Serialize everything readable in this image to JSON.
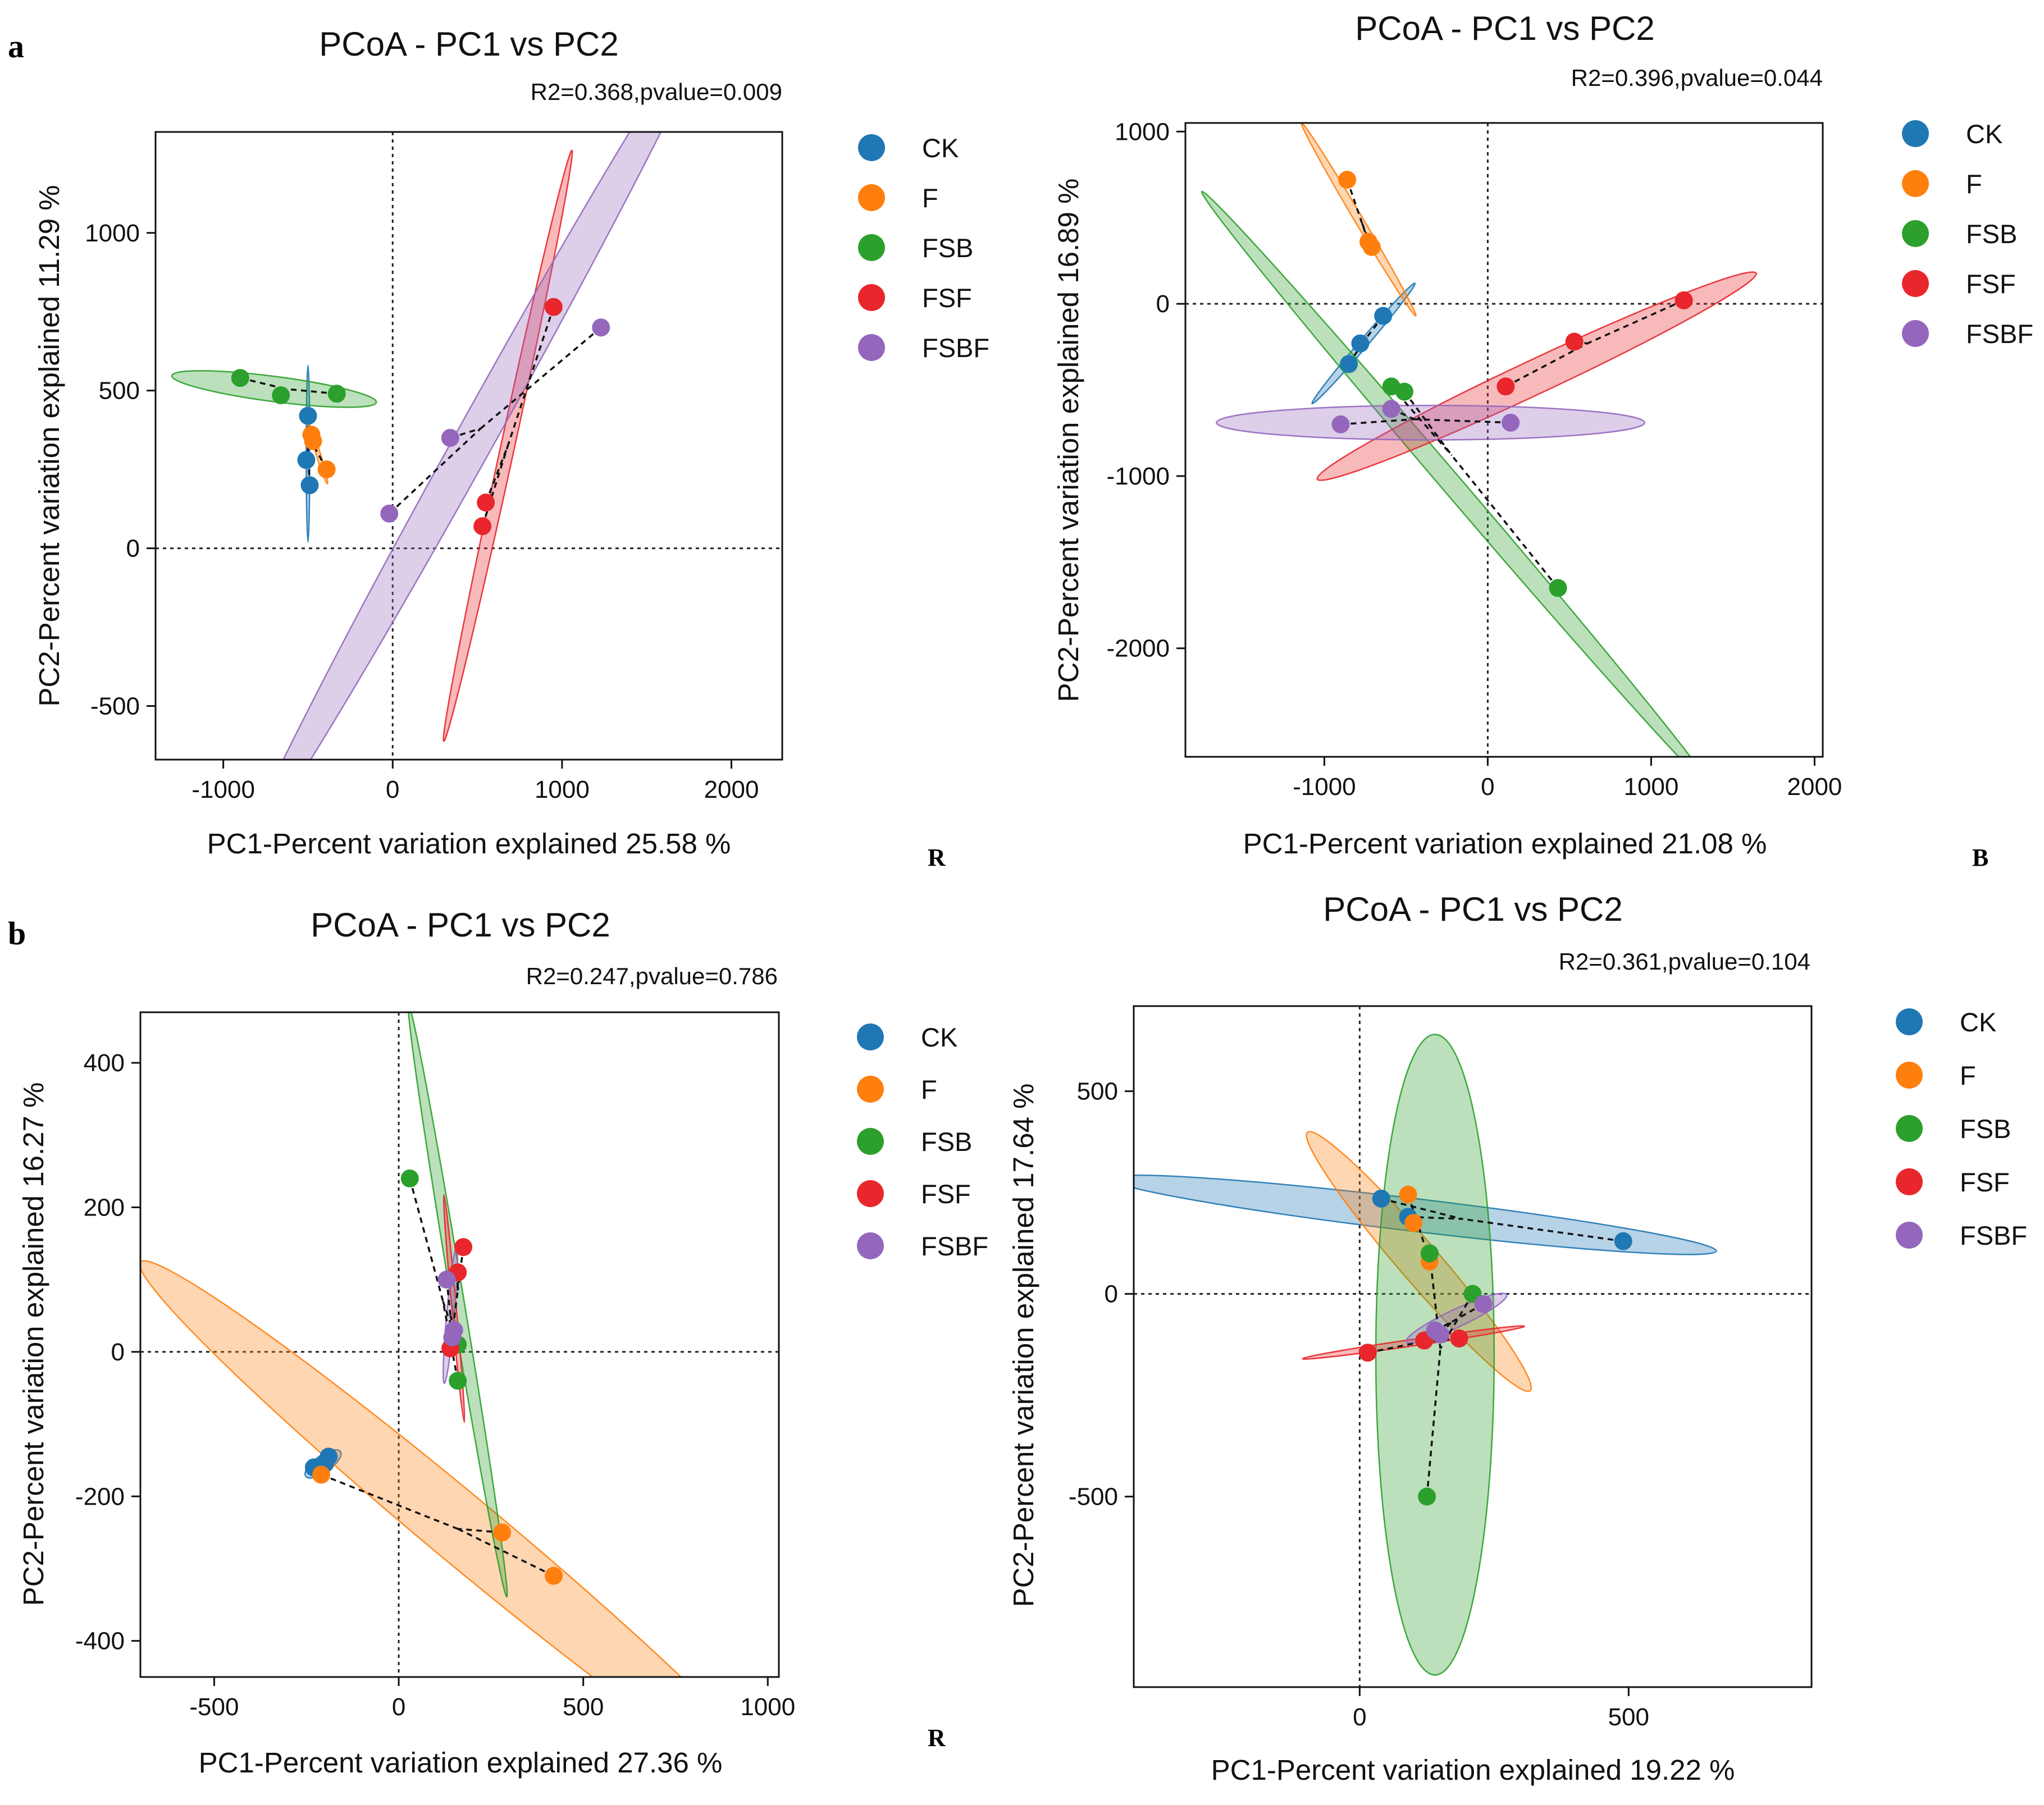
{
  "figure": {
    "panel_label_a": "a",
    "panel_label_b": "b",
    "corner_labels": [
      "R",
      "B",
      "R"
    ]
  },
  "legend_items": [
    {
      "key": "CK",
      "label": "CK",
      "color": "#1f77b4"
    },
    {
      "key": "F",
      "label": "F",
      "color": "#ff7f0e"
    },
    {
      "key": "FSB",
      "label": "FSB",
      "color": "#2ca02c"
    },
    {
      "key": "FSF",
      "label": "FSF",
      "color": "#e8262b"
    },
    {
      "key": "FSBF",
      "label": "FSBF",
      "color": "#9467bd"
    }
  ],
  "chart_data": [
    {
      "type": "scatter",
      "title": "PCoA - PC1 vs PC2",
      "stat": "R2=0.368,pvalue=0.009",
      "xlabel": "PC1-Percent variation explained 25.58 %",
      "ylabel": "PC2-Percent variation explained 11.29 %",
      "xlim": [
        -1400,
        2300
      ],
      "ylim": [
        -670,
        1320
      ],
      "xticks": [
        -1000,
        0,
        1000,
        2000
      ],
      "xtick_labels": [
        "-1000",
        "0",
        "1000",
        "2000"
      ],
      "yticks": [
        -500,
        0,
        500,
        1000
      ],
      "ytick_labels": [
        "-500",
        "0",
        "500",
        "1000"
      ],
      "series": [
        {
          "name": "CK",
          "points": [
            [
              -500,
              420
            ],
            [
              -510,
              280
            ],
            [
              -490,
              200
            ]
          ],
          "centroid": [
            -500,
            300
          ],
          "ellipse": {
            "cx": -500,
            "cy": 300,
            "a": 280,
            "b": 10,
            "angle": 90
          }
        },
        {
          "name": "F",
          "points": [
            [
              -480,
              360
            ],
            [
              -470,
              340
            ],
            [
              -390,
              250
            ]
          ],
          "centroid": [
            -460,
            320
          ],
          "ellipse": {
            "cx": -440,
            "cy": 300,
            "a": 110,
            "b": 10,
            "angle": 120
          }
        },
        {
          "name": "FSB",
          "points": [
            [
              -900,
              540
            ],
            [
              -660,
              485
            ],
            [
              -330,
              490
            ]
          ],
          "centroid": [
            -630,
            505
          ],
          "ellipse": {
            "cx": -700,
            "cy": 505,
            "a": 605,
            "b": 40,
            "angle": -4
          }
        },
        {
          "name": "FSF",
          "points": [
            [
              950,
              765
            ],
            [
              550,
              145
            ],
            [
              530,
              70
            ]
          ],
          "centroid": [
            680,
            325
          ],
          "ellipse": {
            "cx": 680,
            "cy": 325,
            "a": 1010,
            "b": 35,
            "angle": 68
          }
        },
        {
          "name": "FSBF",
          "points": [
            [
              1230,
              700
            ],
            [
              340,
              350
            ],
            [
              -20,
              110
            ]
          ],
          "centroid": [
            520,
            380
          ],
          "ellipse": {
            "cx": 520,
            "cy": 380,
            "a": 1930,
            "b": 75,
            "angle": 44
          }
        }
      ]
    },
    {
      "type": "scatter",
      "title": "PCoA - PC1 vs PC2",
      "stat": "R2=0.396,pvalue=0.044",
      "xlabel": "PC1-Percent variation explained 21.08 %",
      "ylabel": "PC2-Percent variation explained 16.89 %",
      "xlim": [
        -1850,
        2050
      ],
      "ylim": [
        -2630,
        1050
      ],
      "xticks": [
        -1000,
        0,
        1000,
        2000
      ],
      "xtick_labels": [
        "-1000",
        "0",
        "1000",
        "2000"
      ],
      "yticks": [
        -2000,
        -1000,
        0,
        1000
      ],
      "ytick_labels": [
        "-2000",
        "-1000",
        "0",
        "1000"
      ],
      "series": [
        {
          "name": "CK",
          "points": [
            [
              -640,
              -70
            ],
            [
              -780,
              -230
            ],
            [
              -850,
              -350
            ]
          ],
          "centroid": [
            -760,
            -220
          ],
          "ellipse": {
            "cx": -760,
            "cy": -230,
            "a": 470,
            "b": 25,
            "angle": 48
          }
        },
        {
          "name": "F",
          "points": [
            [
              -860,
              720
            ],
            [
              -730,
              360
            ],
            [
              -710,
              330
            ]
          ],
          "centroid": [
            -770,
            470
          ],
          "ellipse": {
            "cx": -790,
            "cy": 490,
            "a": 660,
            "b": 25,
            "angle": -58
          }
        },
        {
          "name": "FSB",
          "points": [
            [
              -590,
              -480
            ],
            [
              -510,
              -510
            ],
            [
              430,
              -1650
            ]
          ],
          "centroid": [
            -220,
            -880
          ],
          "ellipse": {
            "cx": -190,
            "cy": -1080,
            "a": 2330,
            "b": 60,
            "angle": -48
          }
        },
        {
          "name": "FSF",
          "points": [
            [
              1200,
              20
            ],
            [
              530,
              -220
            ],
            [
              110,
              -480
            ]
          ],
          "centroid": [
            610,
            -230
          ],
          "ellipse": {
            "cx": 300,
            "cy": -420,
            "a": 1470,
            "b": 100,
            "angle": 24
          }
        },
        {
          "name": "FSBF",
          "points": [
            [
              -900,
              -700
            ],
            [
              -590,
              -610
            ],
            [
              140,
              -690
            ]
          ],
          "centroid": [
            -450,
            -670
          ],
          "ellipse": {
            "cx": -350,
            "cy": -690,
            "a": 1310,
            "b": 100,
            "angle": 0
          }
        }
      ]
    },
    {
      "type": "scatter",
      "title": "PCoA - PC1 vs PC2",
      "stat": "R2=0.247,pvalue=0.786",
      "xlabel": "PC1-Percent variation explained 27.36 %",
      "ylabel": "PC2-Percent variation explained 16.27 %",
      "xlim": [
        -700,
        1030
      ],
      "ylim": [
        -450,
        470
      ],
      "xticks": [
        -500,
        0,
        500,
        1000
      ],
      "xtick_labels": [
        "-500",
        "0",
        "500",
        "1000"
      ],
      "yticks": [
        -400,
        -200,
        0,
        200,
        400
      ],
      "ytick_labels": [
        "-400",
        "-200",
        "0",
        "200",
        "400"
      ],
      "series": [
        {
          "name": "CK",
          "points": [
            [
              -190,
              -145
            ],
            [
              -230,
              -160
            ],
            [
              -200,
              -155
            ]
          ],
          "centroid": [
            -205,
            -155
          ],
          "ellipse": {
            "cx": -205,
            "cy": -155,
            "a": 50,
            "b": 12,
            "angle": 20
          }
        },
        {
          "name": "F",
          "points": [
            [
              -210,
              -170
            ],
            [
              280,
              -250
            ],
            [
              420,
              -310
            ]
          ],
          "centroid": [
            160,
            -245
          ],
          "ellipse": {
            "cx": 170,
            "cy": -245,
            "a": 945,
            "b": 50,
            "angle": -23
          }
        },
        {
          "name": "FSB",
          "points": [
            [
              30,
              240
            ],
            [
              160,
              10
            ],
            [
              160,
              -40
            ]
          ],
          "centroid": [
            120,
            70
          ],
          "ellipse": {
            "cx": 160,
            "cy": 70,
            "a": 430,
            "b": 15,
            "angle": -72
          }
        },
        {
          "name": "FSF",
          "points": [
            [
              175,
              145
            ],
            [
              160,
              110
            ],
            [
              140,
              5
            ]
          ],
          "centroid": [
            160,
            85
          ],
          "ellipse": {
            "cx": 150,
            "cy": 60,
            "a": 160,
            "b": 6,
            "angle": -80
          }
        },
        {
          "name": "FSBF",
          "points": [
            [
              130,
              100
            ],
            [
              150,
              30
            ],
            [
              145,
              20
            ]
          ],
          "centroid": [
            140,
            50
          ],
          "ellipse": {
            "cx": 140,
            "cy": 50,
            "a": 95,
            "b": 10,
            "angle": 80
          }
        }
      ]
    },
    {
      "type": "scatter",
      "title": "PCoA - PC1 vs PC2",
      "stat": "R2=0.361,pvalue=0.104",
      "xlabel": "PC1-Percent variation explained 19.22 %",
      "ylabel": "PC2-Percent variation explained 17.64 %",
      "xlim": [
        -420,
        840
      ],
      "ylim": [
        -970,
        710
      ],
      "xticks": [
        0,
        500
      ],
      "xtick_labels": [
        "0",
        "500"
      ],
      "yticks": [
        -500,
        0,
        500
      ],
      "ytick_labels": [
        "-500",
        "0",
        "500"
      ],
      "series": [
        {
          "name": "CK",
          "points": [
            [
              40,
              235
            ],
            [
              90,
              190
            ],
            [
              490,
              130
            ]
          ],
          "centroid": [
            190,
            185
          ],
          "ellipse": {
            "cx": 100,
            "cy": 195,
            "a": 570,
            "b": 40,
            "angle": -9
          }
        },
        {
          "name": "F",
          "points": [
            [
              90,
              245
            ],
            [
              130,
              80
            ],
            [
              100,
              175
            ]
          ],
          "centroid": [
            110,
            165
          ],
          "ellipse": {
            "cx": 110,
            "cy": 80,
            "a": 380,
            "b": 40,
            "angle": -57
          }
        },
        {
          "name": "FSB",
          "points": [
            [
              130,
              100
            ],
            [
              210,
              0
            ],
            [
              125,
              -500
            ]
          ],
          "centroid": [
            150,
            -135
          ],
          "ellipse": {
            "cx": 140,
            "cy": -150,
            "a": 790,
            "b": 110,
            "angle": 90
          }
        },
        {
          "name": "FSF",
          "points": [
            [
              15,
              -145
            ],
            [
              120,
              -115
            ],
            [
              185,
              -110
            ]
          ],
          "centroid": [
            110,
            -120
          ],
          "ellipse": {
            "cx": 100,
            "cy": -120,
            "a": 210,
            "b": 8,
            "angle": 11
          }
        },
        {
          "name": "FSBF",
          "points": [
            [
              140,
              -90
            ],
            [
              230,
              -25
            ],
            [
              150,
              -100
            ]
          ],
          "centroid": [
            170,
            -70
          ],
          "ellipse": {
            "cx": 180,
            "cy": -60,
            "a": 110,
            "b": 20,
            "angle": 32
          }
        }
      ]
    }
  ]
}
